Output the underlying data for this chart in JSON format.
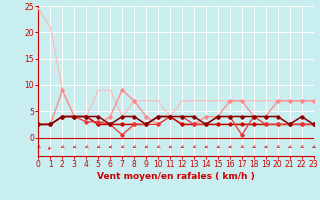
{
  "background_color": "#c8eef0",
  "grid_color": "#ffffff",
  "xlabel": "Vent moyen/en rafales ( km/h )",
  "xlabel_color": "#cc0000",
  "xlabel_fontsize": 6.5,
  "tick_color": "#cc0000",
  "tick_fontsize": 5.5,
  "xlim": [
    0,
    23
  ],
  "ylim_top": 25,
  "yticks": [
    0,
    5,
    10,
    15,
    20,
    25
  ],
  "xticks": [
    0,
    1,
    2,
    3,
    4,
    5,
    6,
    7,
    8,
    9,
    10,
    11,
    12,
    13,
    14,
    15,
    16,
    17,
    18,
    19,
    20,
    21,
    22,
    23
  ],
  "series": [
    {
      "x": [
        0,
        1,
        2,
        3,
        4,
        5,
        6,
        7,
        8,
        9,
        10,
        11,
        12,
        13,
        14,
        15,
        16,
        17,
        18,
        19,
        20,
        21,
        22,
        23
      ],
      "y": [
        24.5,
        21,
        9,
        4,
        4,
        9,
        9,
        4,
        7,
        7,
        7,
        4,
        7,
        7,
        7,
        7,
        7,
        7,
        7,
        7,
        7,
        7,
        7,
        7
      ],
      "color": "#ffbbbb",
      "lw": 0.9,
      "marker": null
    },
    {
      "x": [
        0,
        1,
        2,
        3,
        4,
        5,
        6,
        7,
        8,
        9,
        10,
        11,
        12,
        13,
        14,
        15,
        16,
        17,
        18,
        19,
        20,
        21,
        22,
        23
      ],
      "y": [
        2.5,
        2.5,
        9,
        4,
        4,
        2.5,
        4,
        9,
        7,
        4,
        2.5,
        4,
        2.5,
        2.5,
        4,
        4,
        7,
        7,
        4,
        4,
        7,
        7,
        7,
        7
      ],
      "color": "#ff8888",
      "lw": 0.9,
      "marker": "D",
      "marker_size": 1.8
    },
    {
      "x": [
        0,
        1,
        2,
        3,
        4,
        5,
        6,
        7,
        8,
        9,
        10,
        11,
        12,
        13,
        14,
        15,
        16,
        17,
        18,
        19,
        20,
        21,
        22,
        23
      ],
      "y": [
        2.5,
        2.5,
        4,
        4,
        4,
        2.5,
        2.5,
        2.5,
        2.5,
        2.5,
        4,
        4,
        2.5,
        2.5,
        2.5,
        2.5,
        2.5,
        2.5,
        2.5,
        2.5,
        2.5,
        2.5,
        2.5,
        2.5
      ],
      "color": "#cc0000",
      "lw": 1.1,
      "marker": "D",
      "marker_size": 1.8
    },
    {
      "x": [
        0,
        1,
        2,
        3,
        4,
        5,
        6,
        7,
        8,
        9,
        10,
        11,
        12,
        13,
        14,
        15,
        16,
        17,
        18,
        19,
        20,
        21,
        22,
        23
      ],
      "y": [
        2.5,
        2.5,
        4,
        4,
        3,
        3,
        2.5,
        0.5,
        2.5,
        2.5,
        2.5,
        4,
        4,
        2.5,
        2.5,
        4,
        4,
        0.5,
        4,
        2.5,
        2.5,
        2.5,
        2.5,
        2.5
      ],
      "color": "#ee3333",
      "lw": 0.9,
      "marker": "D",
      "marker_size": 1.8
    },
    {
      "x": [
        0,
        1,
        2,
        3,
        4,
        5,
        6,
        7,
        8,
        9,
        10,
        11,
        12,
        13,
        14,
        15,
        16,
        17,
        18,
        19,
        20,
        21,
        22,
        23
      ],
      "y": [
        2.5,
        2.5,
        4,
        4,
        4,
        4,
        2.5,
        4,
        4,
        2.5,
        4,
        4,
        4,
        4,
        2.5,
        4,
        4,
        4,
        4,
        4,
        4,
        2.5,
        4,
        2.5
      ],
      "color": "#880000",
      "lw": 1.1,
      "marker": "D",
      "marker_size": 1.8
    }
  ],
  "arrow_color": "#cc0000",
  "arrow_angles": [
    210,
    240,
    200,
    190,
    210,
    200,
    190,
    210,
    200,
    190,
    210,
    190,
    200,
    210,
    190,
    200,
    190,
    210,
    200,
    190,
    210,
    200,
    210,
    200
  ]
}
